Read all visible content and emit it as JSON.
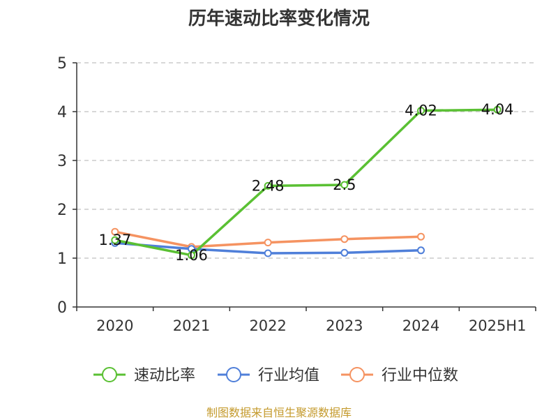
{
  "chart_data": {
    "type": "line",
    "title": "历年速动比率变化情况",
    "categories": [
      "2020",
      "2021",
      "2022",
      "2023",
      "2024",
      "2025H1"
    ],
    "ylim": [
      0,
      5
    ],
    "yticks": [
      "0",
      "1",
      "2",
      "3",
      "4",
      "5"
    ],
    "grid": true,
    "legend_position": "bottom",
    "series": [
      {
        "name": "速动比率",
        "color": "#5ac033",
        "values": [
          1.37,
          1.06,
          2.48,
          2.5,
          4.02,
          4.04
        ],
        "labels": [
          "1.37",
          "1.06",
          "2.48",
          "2.5",
          "4.02",
          "4.04"
        ]
      },
      {
        "name": "行业均值",
        "color": "#4f7fd9",
        "values": [
          1.31,
          1.19,
          1.1,
          1.11,
          1.16,
          null
        ],
        "labels": []
      },
      {
        "name": "行业中位数",
        "color": "#f59361",
        "values": [
          1.54,
          1.23,
          1.32,
          1.39,
          1.44,
          null
        ],
        "labels": []
      }
    ]
  },
  "footer": {
    "source": "制图数据来自恒生聚源数据库"
  }
}
